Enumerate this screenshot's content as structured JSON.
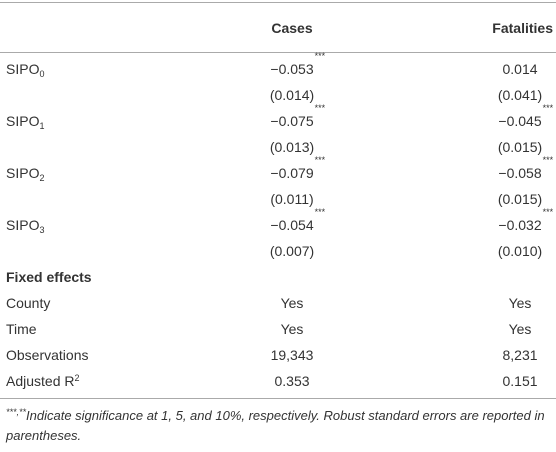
{
  "table": {
    "columns": [
      "Cases",
      "Fatalities"
    ],
    "rows": [
      {
        "label": "SIPO",
        "label_sub": "0",
        "cells": [
          {
            "text": "−0.053",
            "sup": "***"
          },
          {
            "text": "0.014"
          }
        ]
      },
      {
        "cells": [
          {
            "text": "(0.014)"
          },
          {
            "text": "(0.041)"
          }
        ]
      },
      {
        "label": "SIPO",
        "label_sub": "1",
        "cells": [
          {
            "text": "−0.075",
            "sup": "***"
          },
          {
            "text": "−0.045",
            "sup": "***"
          }
        ]
      },
      {
        "cells": [
          {
            "text": "(0.013)"
          },
          {
            "text": "(0.015)"
          }
        ]
      },
      {
        "label": "SIPO",
        "label_sub": "2",
        "cells": [
          {
            "text": "−0.079",
            "sup": "***"
          },
          {
            "text": "−0.058",
            "sup": "***"
          }
        ]
      },
      {
        "cells": [
          {
            "text": "(0.011)"
          },
          {
            "text": "(0.015)"
          }
        ]
      },
      {
        "label": "SIPO",
        "label_sub": "3",
        "cells": [
          {
            "text": "−0.054",
            "sup": "***"
          },
          {
            "text": "−0.032",
            "sup": "***"
          }
        ]
      },
      {
        "cells": [
          {
            "text": "(0.007)"
          },
          {
            "text": "(0.010)"
          }
        ]
      },
      {
        "section": "Fixed effects"
      },
      {
        "label": "County",
        "cells": [
          {
            "text": "Yes"
          },
          {
            "text": "Yes"
          }
        ]
      },
      {
        "label": "Time",
        "cells": [
          {
            "text": "Yes"
          },
          {
            "text": "Yes"
          }
        ]
      },
      {
        "label": "Observations",
        "cells": [
          {
            "text": "19,343"
          },
          {
            "text": "8,231"
          }
        ]
      },
      {
        "label": "Adjusted R",
        "label_sup": "2",
        "cells": [
          {
            "text": "0.353"
          },
          {
            "text": "0.151"
          }
        ]
      }
    ]
  },
  "footnote": {
    "sup": "***,**",
    "text": "Indicate significance at 1, 5, and 10%, respectively. Robust standard errors are reported in parentheses."
  }
}
